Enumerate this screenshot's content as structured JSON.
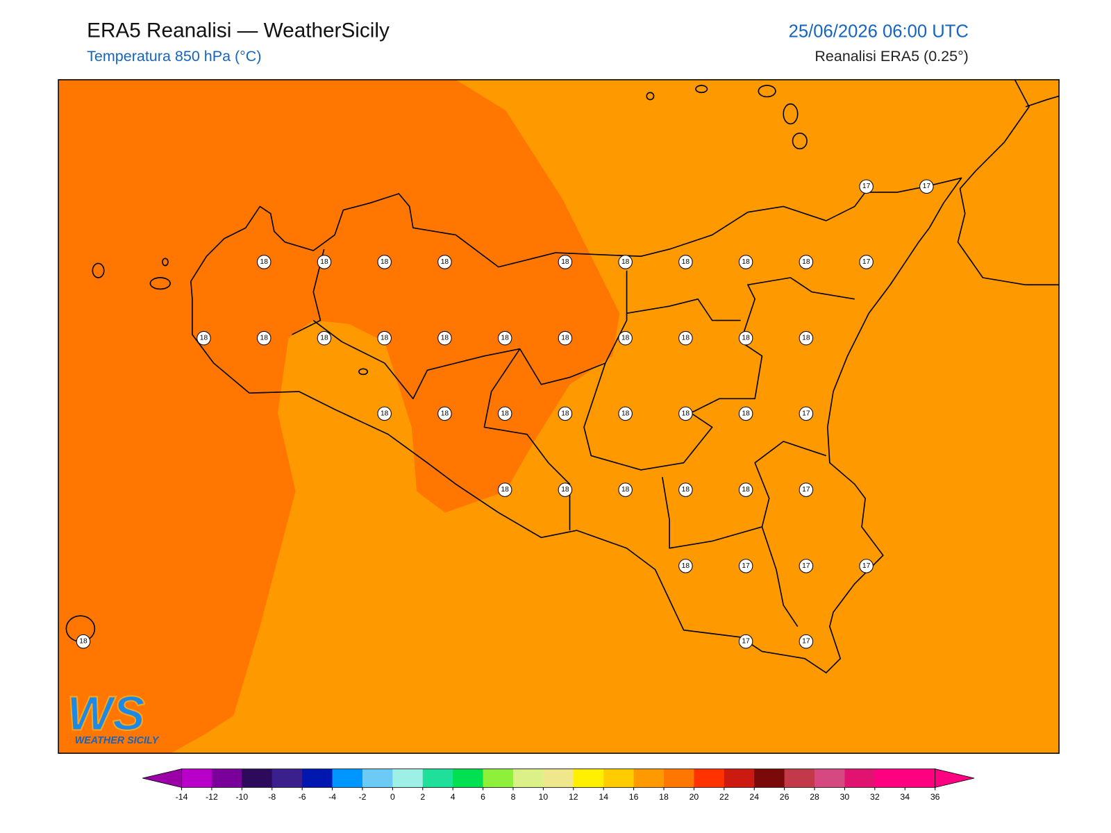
{
  "header": {
    "title": "ERA5 Reanalisi — WeatherSicily",
    "subtitle": "Temperatura 850 hPa (°C)",
    "date": "25/06/2026 06:00 UTC",
    "source": "Reanalisi ERA5 (0.25°)"
  },
  "stations": [
    [
      17,
      17
    ],
    [
      18,
      18,
      18,
      18,
      18,
      18,
      18,
      18,
      18,
      17
    ],
    [
      18,
      18,
      18,
      18,
      18,
      18,
      18,
      18,
      18,
      18,
      18
    ],
    [
      18,
      18,
      18,
      18,
      18,
      18,
      18,
      17
    ],
    [
      18,
      18,
      18,
      18,
      18,
      17
    ],
    [
      18,
      17,
      17,
      17
    ],
    [
      18,
      17,
      17
    ]
  ],
  "logo": {
    "mark": "WS",
    "name": "WEATHER SICILY"
  },
  "colorbar": {
    "ticks": [
      -14,
      -12,
      -10,
      -8,
      -6,
      -4,
      -2,
      0,
      2,
      4,
      6,
      8,
      10,
      12,
      14,
      16,
      18,
      20,
      22,
      24,
      26,
      28,
      30,
      32,
      34,
      36
    ],
    "colors": [
      "#b800c9",
      "#7a009a",
      "#2e0a5c",
      "#3b1f8c",
      "#0018b0",
      "#0096ff",
      "#6ccaf5",
      "#9ef0e6",
      "#1ee09a",
      "#00e050",
      "#8ef03a",
      "#dcf08a",
      "#f0e68c",
      "#fff000",
      "#ffcc00",
      "#ff9900",
      "#ff7700",
      "#ff3300",
      "#cc1a10",
      "#7a0a0a",
      "#c23a4a",
      "#d64880",
      "#e01470",
      "#ff0080",
      "#ff0080"
    ],
    "under": "#9b00a8",
    "over": "#ff0080"
  }
}
